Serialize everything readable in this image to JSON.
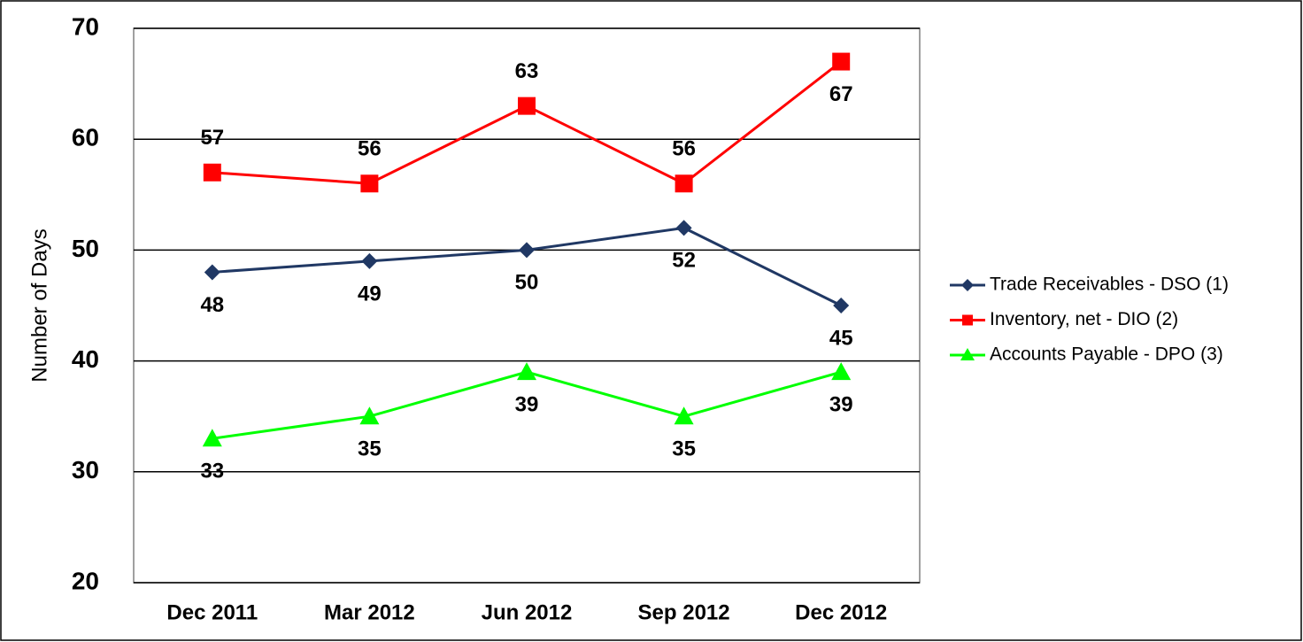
{
  "chart_data": {
    "type": "line",
    "ylabel": "Number of Days",
    "categories": [
      "Dec 2011",
      "Mar 2012",
      "Jun 2012",
      "Sep 2012",
      "Dec 2012"
    ],
    "series": [
      {
        "name": "Trade Receivables - DSO (1)",
        "color": "#203864",
        "marker": "diamond",
        "values": [
          48,
          49,
          50,
          52,
          45
        ],
        "label_positions": [
          "below",
          "below",
          "below",
          "below",
          "below"
        ]
      },
      {
        "name": "Inventory, net - DIO (2)",
        "color": "#ff0000",
        "marker": "square",
        "values": [
          57,
          56,
          63,
          56,
          67
        ],
        "label_positions": [
          "above",
          "above",
          "above",
          "above",
          "below"
        ]
      },
      {
        "name": "Accounts Payable - DPO (3)",
        "color": "#00ff00",
        "marker": "triangle",
        "values": [
          33,
          35,
          39,
          35,
          39
        ],
        "label_positions": [
          "below",
          "below",
          "below",
          "below",
          "below"
        ]
      }
    ],
    "ylim": [
      20,
      70
    ],
    "yticks": [
      20,
      30,
      40,
      50,
      60,
      70
    ],
    "grid": true,
    "legend": "right"
  }
}
